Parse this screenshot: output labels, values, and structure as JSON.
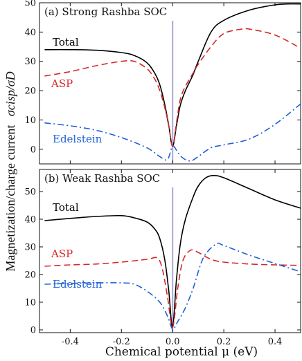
{
  "xlabel": "Chemical potential μ (eV)",
  "ylabel_main": "Magnetization/charge current",
  "ylabel_ratio": "σcisp/σD",
  "colors": {
    "total": "#000000",
    "asp": "#d62728",
    "edelstein": "#1f5fd6",
    "zero_line": "#a8a8d8"
  },
  "chart_data": [
    {
      "type": "line",
      "title": "(a)  Strong Rashba SOC",
      "xlim": [
        -0.52,
        0.5
      ],
      "ylim": [
        -5,
        50
      ],
      "xticks": [
        "-0.4",
        "-0.2",
        "0.0",
        "0.2",
        "0.4"
      ],
      "yticks": [
        "0",
        "10",
        "20",
        "30",
        "40",
        "50"
      ],
      "labels": {
        "total": "Total",
        "asp": "ASP",
        "edelstein": "Edelstein"
      },
      "series": [
        {
          "name": "Total",
          "style": "solid",
          "x": [
            -0.5,
            -0.4,
            -0.3,
            -0.2,
            -0.15,
            -0.1,
            -0.07,
            -0.05,
            -0.03,
            -0.015,
            0.0,
            0.015,
            0.03,
            0.05,
            0.08,
            0.1,
            0.15,
            0.2,
            0.3,
            0.4,
            0.45,
            0.5
          ],
          "y": [
            34,
            34,
            33.8,
            33,
            32,
            29.5,
            26,
            22,
            15,
            8,
            1,
            8,
            15,
            20,
            25.5,
            30,
            40,
            44,
            47.5,
            49.3,
            49.6,
            49.6
          ]
        },
        {
          "name": "ASP",
          "style": "dashed",
          "x": [
            -0.5,
            -0.4,
            -0.3,
            -0.2,
            -0.15,
            -0.1,
            -0.07,
            -0.05,
            -0.03,
            -0.015,
            0.0,
            0.015,
            0.03,
            0.05,
            0.08,
            0.1,
            0.15,
            0.2,
            0.27,
            0.3,
            0.4,
            0.5
          ],
          "y": [
            25,
            26.5,
            28.5,
            30,
            30,
            27.5,
            24,
            20,
            14,
            8,
            1,
            9,
            17,
            21.5,
            26,
            29,
            35,
            39.5,
            41,
            41,
            39,
            34.5
          ]
        },
        {
          "name": "Edelstein",
          "style": "dashdot",
          "x": [
            -0.5,
            -0.4,
            -0.3,
            -0.2,
            -0.1,
            -0.05,
            -0.02,
            0.0,
            0.02,
            0.04,
            0.07,
            0.1,
            0.15,
            0.2,
            0.3,
            0.4,
            0.5
          ],
          "y": [
            9,
            8,
            6.5,
            4,
            0.5,
            -2.5,
            -3.5,
            1,
            -1,
            -3,
            -4,
            -2.5,
            0.5,
            1.5,
            3.5,
            8.5,
            15.5
          ]
        }
      ]
    },
    {
      "type": "line",
      "title": "(b)  Weak Rashba SOC",
      "xlim": [
        -0.52,
        0.5
      ],
      "ylim": [
        -1,
        58
      ],
      "xticks": [
        "-0.4",
        "-0.2",
        "0.0",
        "0.2",
        "0.4"
      ],
      "yticks": [
        "0",
        "10",
        "20",
        "30",
        "40",
        "50"
      ],
      "labels": {
        "total": "Total",
        "asp": "ASP",
        "edelstein": "Edelstein"
      },
      "series": [
        {
          "name": "Total",
          "style": "solid",
          "x": [
            -0.5,
            -0.4,
            -0.3,
            -0.2,
            -0.15,
            -0.1,
            -0.07,
            -0.05,
            -0.03,
            -0.015,
            0.0,
            0.015,
            0.03,
            0.05,
            0.08,
            0.1,
            0.13,
            0.16,
            0.2,
            0.3,
            0.4,
            0.5
          ],
          "y": [
            39.5,
            40.3,
            41,
            41.3,
            40.5,
            39,
            36.5,
            33,
            25,
            14,
            1,
            18,
            31,
            40,
            48,
            52,
            55,
            55.8,
            55,
            51,
            47,
            44
          ]
        },
        {
          "name": "ASP",
          "style": "dashed",
          "x": [
            -0.5,
            -0.4,
            -0.3,
            -0.2,
            -0.1,
            -0.06,
            -0.04,
            -0.02,
            0.0,
            0.02,
            0.04,
            0.07,
            0.1,
            0.15,
            0.2,
            0.3,
            0.4,
            0.5
          ],
          "y": [
            23,
            23.5,
            23.8,
            24.5,
            25.5,
            26,
            22,
            12,
            1,
            15,
            25,
            28.8,
            28,
            25.5,
            24.5,
            23.8,
            23.5,
            23.3
          ]
        },
        {
          "name": "Edelstein",
          "style": "dashdot",
          "x": [
            -0.5,
            -0.4,
            -0.3,
            -0.2,
            -0.15,
            -0.1,
            -0.05,
            -0.02,
            0.0,
            0.02,
            0.05,
            0.08,
            0.12,
            0.17,
            0.2,
            0.3,
            0.4,
            0.5
          ],
          "y": [
            16.5,
            16.8,
            17,
            17,
            16.5,
            14,
            10,
            5,
            0.3,
            3,
            8,
            15,
            26,
            31,
            30.5,
            27,
            24,
            21
          ]
        }
      ]
    }
  ]
}
